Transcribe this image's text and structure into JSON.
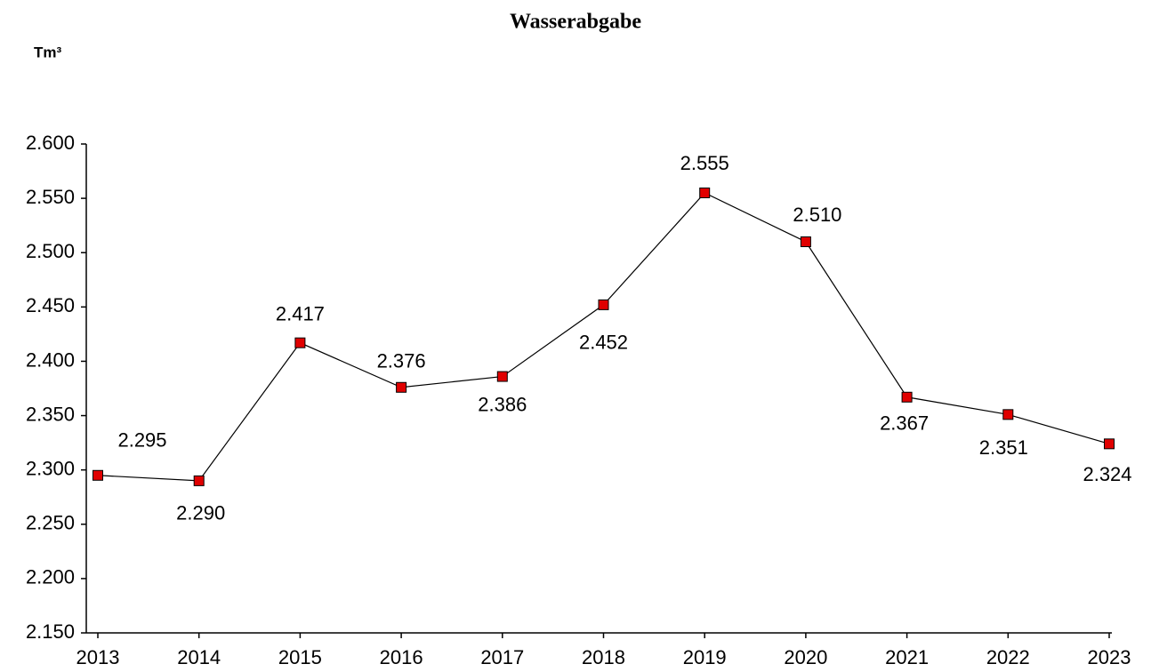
{
  "chart_data": {
    "type": "line",
    "title": "Wasserabgabe",
    "y_label": "Tm³",
    "categories": [
      "2013",
      "2014",
      "2015",
      "2016",
      "2017",
      "2018",
      "2019",
      "2020",
      "2021",
      "2022",
      "2023"
    ],
    "series": [
      {
        "color": "#e00000",
        "values": [
          2295,
          2290,
          2417,
          2376,
          2386,
          2452,
          2555,
          2510,
          2367,
          2351,
          2324
        ],
        "value_labels": [
          "2.295",
          "2.290",
          "2.417",
          "2.376",
          "2.386",
          "2.452",
          "2.555",
          "2.510",
          "2.367",
          "2.351",
          "2.324"
        ]
      }
    ],
    "ylim": [
      2150,
      2600
    ],
    "yticks": [
      {
        "value": 2150,
        "label": "2.150"
      },
      {
        "value": 2200,
        "label": "2.200"
      },
      {
        "value": 2250,
        "label": "2.250"
      },
      {
        "value": 2300,
        "label": "2.300"
      },
      {
        "value": 2350,
        "label": "2.350"
      },
      {
        "value": 2400,
        "label": "2.400"
      },
      {
        "value": 2450,
        "label": "2.450"
      },
      {
        "value": 2500,
        "label": "2.500"
      },
      {
        "value": 2550,
        "label": "2.550"
      },
      {
        "value": 2600,
        "label": "2.600"
      }
    ],
    "grid": false
  }
}
